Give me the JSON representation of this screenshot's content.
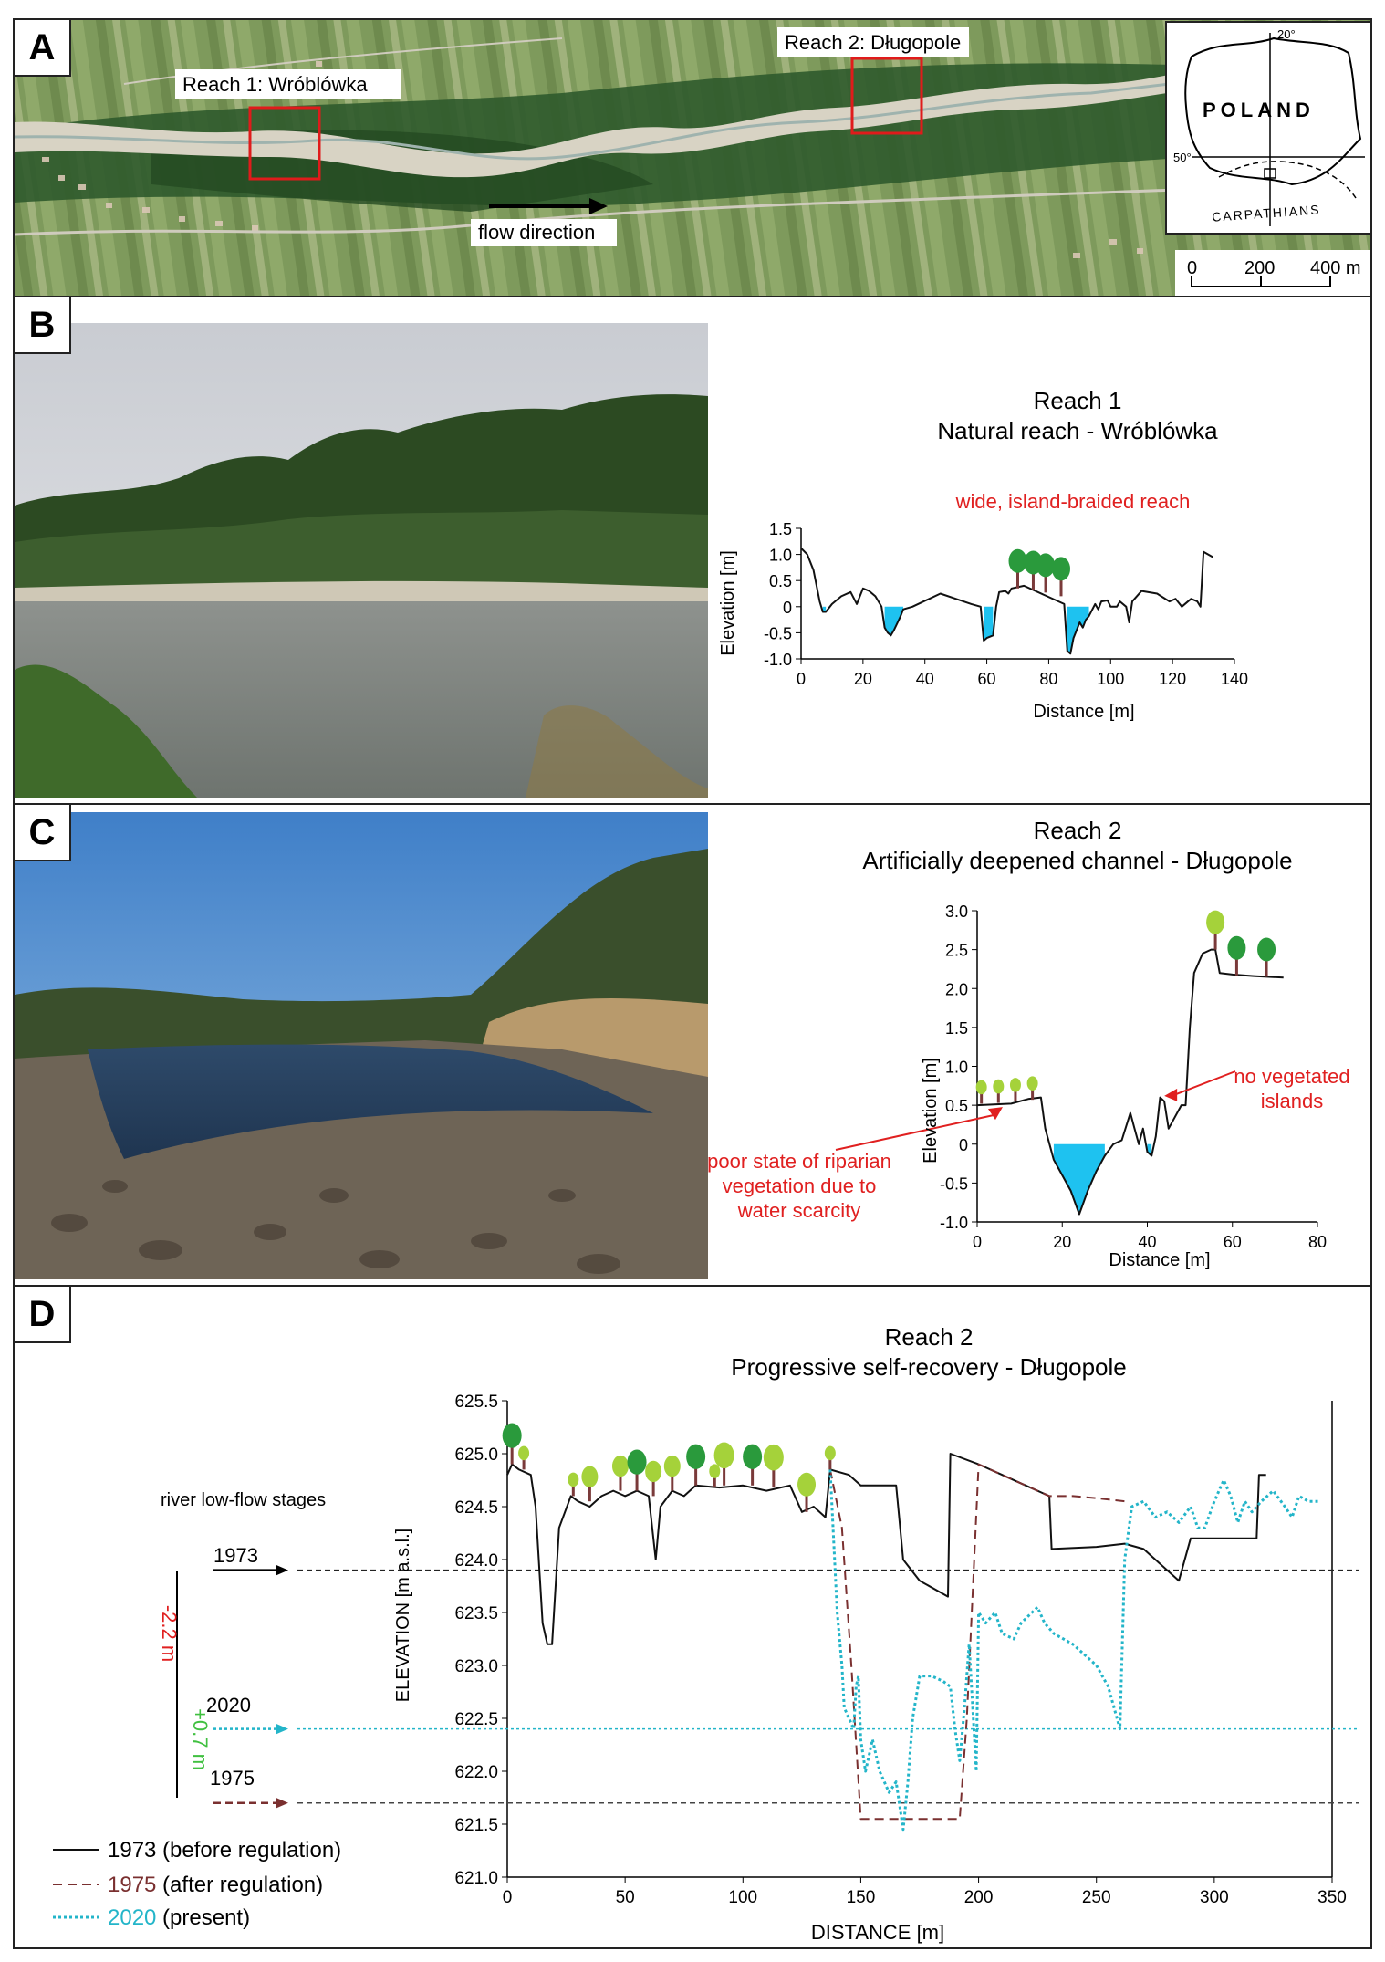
{
  "panels": {
    "a": {
      "label": "A",
      "reach1_label": "Reach 1: Wróblówka",
      "reach2_label": "Reach 2: Długopole",
      "flow_label": "flow direction",
      "inset": {
        "country": "POLAND",
        "mountains": "CARPATHIANS",
        "lon": "20°",
        "lat": "50°"
      },
      "scale": {
        "t0": "0",
        "t1": "200",
        "t2": "400 m"
      }
    },
    "b": {
      "label": "B",
      "photo_desc": "photo"
    },
    "c": {
      "label": "C"
    },
    "d": {
      "label": "D",
      "stages_title": "river low-flow stages",
      "stage_1973": "1973",
      "stage_2020": "2020",
      "stage_1975": "1975",
      "change_total": "-2.2 m",
      "change_recovery": "+0.7 m",
      "legend": {
        "l1973_year": "1973",
        "l1973_rest": " (before regulation)",
        "l1975_year": "1975",
        "l1975_rest": " (after regulation)",
        "l2020_year": "2020",
        "l2020_rest": " (present)"
      }
    }
  },
  "chart_data": [
    {
      "type": "line",
      "title": "Reach 1",
      "subtitle": "Natural reach - Wróblówka",
      "annotation": "wide, island-braided reach",
      "xlabel": "Distance [m]",
      "ylabel": "Elevation [m]",
      "xlim": [
        0,
        140
      ],
      "ylim": [
        -1.0,
        1.5
      ],
      "xticks": [
        "0",
        "20",
        "40",
        "60",
        "80",
        "100",
        "120",
        "140"
      ],
      "yticks": [
        "-1.0",
        "-0.5",
        "0",
        "0.5",
        "1.0",
        "1.5"
      ],
      "series": [
        {
          "values_xy": [
            [
              0,
              1.12
            ],
            [
              2,
              1.0
            ],
            [
              4,
              0.7
            ],
            [
              6,
              0.1
            ],
            [
              7,
              -0.1
            ],
            [
              8,
              -0.1
            ],
            [
              10,
              0.05
            ],
            [
              13,
              0.2
            ],
            [
              16,
              0.28
            ],
            [
              18,
              0.05
            ],
            [
              20,
              0.35
            ],
            [
              22,
              0.3
            ],
            [
              24,
              0.2
            ],
            [
              26,
              0.0
            ],
            [
              27,
              -0.4
            ],
            [
              28,
              -0.5
            ],
            [
              29,
              -0.55
            ],
            [
              30,
              -0.45
            ],
            [
              32,
              -0.2
            ],
            [
              33,
              -0.05
            ],
            [
              36,
              0.0
            ],
            [
              45,
              0.25
            ],
            [
              50,
              0.15
            ],
            [
              55,
              0.05
            ],
            [
              58,
              0.0
            ],
            [
              59,
              -0.65
            ],
            [
              60,
              -0.6
            ],
            [
              62,
              -0.55
            ],
            [
              63,
              0.0
            ],
            [
              64,
              0.28
            ],
            [
              66,
              0.3
            ],
            [
              67,
              0.25
            ],
            [
              68,
              0.35
            ],
            [
              72,
              0.4
            ],
            [
              85,
              0.05
            ],
            [
              86,
              -0.85
            ],
            [
              87,
              -0.9
            ],
            [
              88,
              -0.6
            ],
            [
              90,
              -0.3
            ],
            [
              91,
              -0.4
            ],
            [
              92,
              -0.25
            ],
            [
              93,
              -0.18
            ],
            [
              95,
              0.05
            ],
            [
              96,
              -0.05
            ],
            [
              97,
              0.1
            ],
            [
              99,
              0.12
            ],
            [
              100,
              0.0
            ],
            [
              102,
              0.0
            ],
            [
              103,
              0.1
            ],
            [
              105,
              0.0
            ],
            [
              106,
              -0.3
            ],
            [
              107,
              0.1
            ],
            [
              110,
              0.3
            ],
            [
              115,
              0.25
            ],
            [
              119,
              0.1
            ],
            [
              121,
              0.15
            ],
            [
              123,
              0.0
            ],
            [
              126,
              0.15
            ],
            [
              128,
              0.1
            ],
            [
              129,
              0.0
            ],
            [
              130,
              1.05
            ],
            [
              133,
              0.95
            ]
          ]
        }
      ]
    },
    {
      "type": "line",
      "title": "Reach 2",
      "subtitle": "Artificially deepened channel - Długopole",
      "annotations": [
        "poor state of riparian vegetation due to water scarcity",
        "no vegetated islands"
      ],
      "annotation_lines": [
        "poor state of riparian",
        "vegetation due to",
        "water scarcity",
        "no vegetated",
        "islands"
      ],
      "xlabel": "Distance [m]",
      "ylabel": "Elevation [m]",
      "xlim": [
        0,
        80
      ],
      "ylim": [
        -1.0,
        3.0
      ],
      "xticks": [
        "0",
        "20",
        "40",
        "60",
        "80"
      ],
      "yticks": [
        "-1.0",
        "-0.5",
        "0",
        "0.5",
        "1.0",
        "1.5",
        "2.0",
        "2.5",
        "3.0"
      ],
      "series": [
        {
          "values_xy": [
            [
              0,
              0.5
            ],
            [
              8,
              0.52
            ],
            [
              12,
              0.58
            ],
            [
              15,
              0.6
            ],
            [
              16,
              0.2
            ],
            [
              17,
              0.0
            ],
            [
              18,
              -0.2
            ],
            [
              20,
              -0.4
            ],
            [
              22,
              -0.6
            ],
            [
              24,
              -0.9
            ],
            [
              26,
              -0.6
            ],
            [
              28,
              -0.35
            ],
            [
              30,
              -0.15
            ],
            [
              32,
              0.0
            ],
            [
              34,
              0.05
            ],
            [
              36,
              0.4
            ],
            [
              37,
              0.2
            ],
            [
              38,
              0.0
            ],
            [
              39,
              0.2
            ],
            [
              40,
              -0.1
            ],
            [
              41,
              -0.15
            ],
            [
              42,
              0.1
            ],
            [
              43,
              0.6
            ],
            [
              44,
              0.55
            ],
            [
              45,
              0.2
            ],
            [
              46,
              0.3
            ],
            [
              48,
              0.5
            ],
            [
              49,
              0.5
            ],
            [
              50,
              1.5
            ],
            [
              51,
              2.2
            ],
            [
              53,
              2.45
            ],
            [
              55,
              2.5
            ],
            [
              56,
              2.5
            ],
            [
              57,
              2.2
            ],
            [
              60,
              2.18
            ],
            [
              65,
              2.16
            ],
            [
              72,
              2.14
            ]
          ]
        }
      ]
    },
    {
      "type": "line",
      "title": "Reach 2",
      "subtitle": "Progressive self-recovery - Długopole",
      "xlabel": "DISTANCE  [m]",
      "ylabel": "ELEVATION  [m a.s.l.]",
      "xlim": [
        0,
        350
      ],
      "ylim": [
        621.0,
        625.5
      ],
      "xticks": [
        "0",
        "50",
        "100",
        "150",
        "200",
        "250",
        "300",
        "350"
      ],
      "yticks": [
        "621.0",
        "621.5",
        "622.0",
        "622.5",
        "623.0",
        "623.5",
        "624.0",
        "624.5",
        "625.0",
        "625.5"
      ],
      "low_flow_stages": {
        "1973": 623.9,
        "2020": 622.4,
        "1975": 621.7
      },
      "series": [
        {
          "name": "1973 (before regulation)",
          "values_xy": [
            [
              0,
              624.8
            ],
            [
              2,
              624.9
            ],
            [
              5,
              624.85
            ],
            [
              10,
              624.8
            ],
            [
              12,
              624.5
            ],
            [
              15,
              623.4
            ],
            [
              17,
              623.2
            ],
            [
              19,
              623.2
            ],
            [
              22,
              624.3
            ],
            [
              27,
              624.6
            ],
            [
              30,
              624.55
            ],
            [
              35,
              624.5
            ],
            [
              40,
              624.6
            ],
            [
              45,
              624.65
            ],
            [
              50,
              624.6
            ],
            [
              55,
              624.65
            ],
            [
              60,
              624.6
            ],
            [
              63,
              624.0
            ],
            [
              65,
              624.5
            ],
            [
              70,
              624.65
            ],
            [
              75,
              624.6
            ],
            [
              80,
              624.7
            ],
            [
              90,
              624.68
            ],
            [
              100,
              624.7
            ],
            [
              110,
              624.65
            ],
            [
              120,
              624.7
            ],
            [
              125,
              624.45
            ],
            [
              130,
              624.5
            ],
            [
              135,
              624.4
            ],
            [
              137,
              624.85
            ],
            [
              145,
              624.8
            ],
            [
              150,
              624.7
            ],
            [
              160,
              624.7
            ],
            [
              165,
              624.7
            ],
            [
              168,
              624.0
            ],
            [
              175,
              623.8
            ],
            [
              187,
              623.65
            ],
            [
              188,
              625.0
            ],
            [
              200,
              624.9
            ],
            [
              210,
              624.8
            ],
            [
              220,
              624.7
            ],
            [
              230,
              624.6
            ],
            [
              231,
              624.1
            ],
            [
              250,
              624.12
            ],
            [
              262,
              624.15
            ],
            [
              270,
              624.1
            ],
            [
              285,
              623.8
            ],
            [
              290,
              624.2
            ],
            [
              300,
              624.2
            ],
            [
              310,
              624.2
            ],
            [
              318,
              624.2
            ],
            [
              319,
              624.8
            ],
            [
              322,
              624.8
            ]
          ]
        },
        {
          "name": "1975 (after regulation)",
          "values_xy": [
            [
              137,
              624.85
            ],
            [
              142,
              624.3
            ],
            [
              146,
              623.0
            ],
            [
              150,
              621.55
            ],
            [
              160,
              621.55
            ],
            [
              175,
              621.55
            ],
            [
              192,
              621.55
            ],
            [
              195,
              622.5
            ],
            [
              200,
              624.9
            ],
            [
              210,
              624.8
            ],
            [
              220,
              624.7
            ],
            [
              230,
              624.6
            ],
            [
              240,
              624.6
            ],
            [
              250,
              624.58
            ],
            [
              262,
              624.55
            ]
          ]
        },
        {
          "name": "2020 (present)",
          "values_xy": [
            [
              137,
              624.85
            ],
            [
              140,
              623.5
            ],
            [
              142,
              623.0
            ],
            [
              143,
              622.6
            ],
            [
              145,
              622.5
            ],
            [
              147,
              622.4
            ],
            [
              148,
              622.8
            ],
            [
              149,
              622.9
            ],
            [
              150,
              622.3
            ],
            [
              152,
              622.0
            ],
            [
              155,
              622.3
            ],
            [
              158,
              622.0
            ],
            [
              162,
              621.8
            ],
            [
              165,
              621.9
            ],
            [
              168,
              621.45
            ],
            [
              170,
              621.9
            ],
            [
              172,
              622.5
            ],
            [
              175,
              622.9
            ],
            [
              180,
              622.9
            ],
            [
              185,
              622.85
            ],
            [
              188,
              622.8
            ],
            [
              190,
              622.4
            ],
            [
              192,
              622.1
            ],
            [
              194,
              622.6
            ],
            [
              196,
              623.2
            ],
            [
              199,
              622.0
            ],
            [
              200,
              623.5
            ],
            [
              203,
              623.4
            ],
            [
              207,
              623.5
            ],
            [
              210,
              623.3
            ],
            [
              215,
              623.25
            ],
            [
              218,
              623.4
            ],
            [
              225,
              623.55
            ],
            [
              228,
              623.4
            ],
            [
              232,
              623.3
            ],
            [
              236,
              623.25
            ],
            [
              240,
              623.2
            ],
            [
              245,
              623.1
            ],
            [
              250,
              623.0
            ],
            [
              255,
              622.8
            ],
            [
              260,
              622.4
            ],
            [
              262,
              624.0
            ],
            [
              265,
              624.5
            ],
            [
              270,
              624.55
            ],
            [
              275,
              624.4
            ],
            [
              280,
              624.45
            ],
            [
              285,
              624.35
            ],
            [
              290,
              624.5
            ],
            [
              293,
              624.3
            ],
            [
              296,
              624.3
            ],
            [
              300,
              624.55
            ],
            [
              304,
              624.75
            ],
            [
              307,
              624.6
            ],
            [
              310,
              624.35
            ],
            [
              313,
              624.55
            ],
            [
              316,
              624.45
            ],
            [
              320,
              624.55
            ],
            [
              325,
              624.65
            ],
            [
              330,
              624.5
            ],
            [
              333,
              624.4
            ],
            [
              336,
              624.6
            ],
            [
              340,
              624.55
            ],
            [
              344,
              624.55
            ]
          ]
        }
      ]
    }
  ],
  "colors": {
    "water": "#1ec2f0",
    "annotation_red": "#e02020",
    "series_1973": "#111111",
    "series_1975": "#7a3030",
    "series_2020": "#23b5c9",
    "recovery_green": "#40c040",
    "tree_dark": "#2a9a3c",
    "tree_light": "#a5d23a"
  }
}
